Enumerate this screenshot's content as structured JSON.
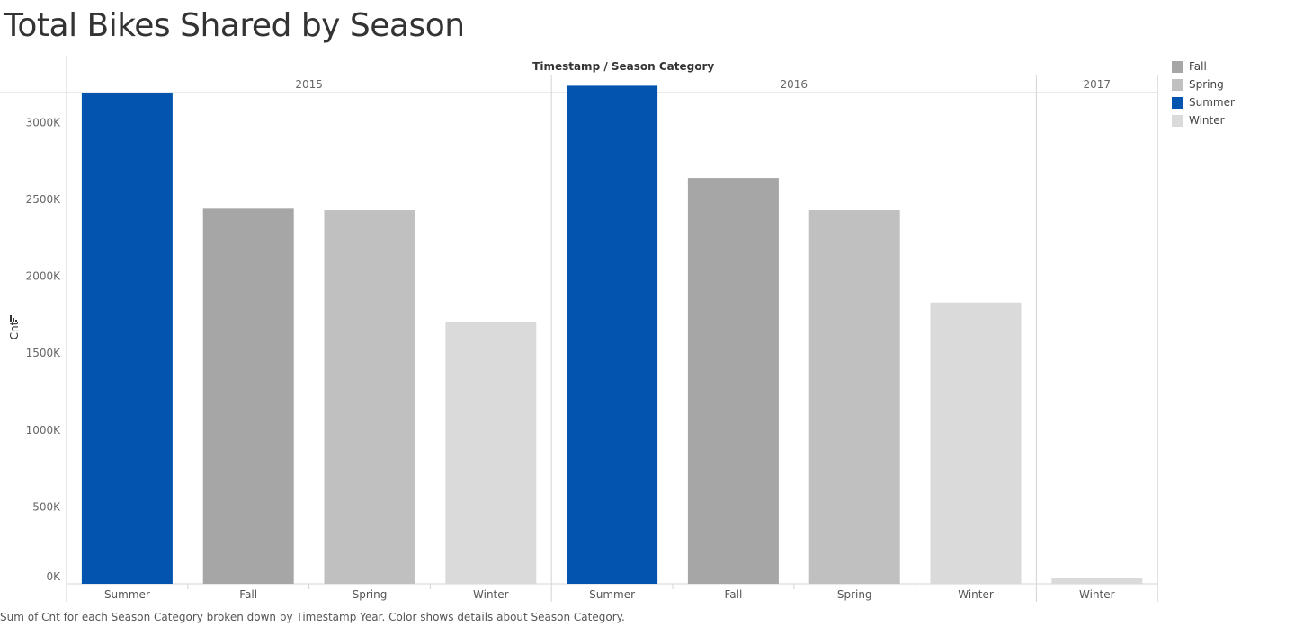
{
  "title": "Total Bikes Shared by Season",
  "caption": "Sum of Cnt for each Season Category broken down by Timestamp Year.  Color shows details about Season Category.",
  "colors": {
    "Summer": "#0254ae",
    "Fall": "#a6a6a6",
    "Spring": "#c0c0c0",
    "Winter": "#dadada"
  },
  "legend": [
    {
      "label": "Fall",
      "color": "#a6a6a6"
    },
    {
      "label": "Spring",
      "color": "#c0c0c0"
    },
    {
      "label": "Summer",
      "color": "#0254ae"
    },
    {
      "label": "Winter",
      "color": "#dadada"
    }
  ],
  "chart_data": {
    "type": "bar",
    "title": "Total Bikes Shared by Season",
    "header_label": "Timestamp / Season Category",
    "ylabel": "Cnt",
    "yunit_suffix": "K",
    "ylim": [
      0,
      3400
    ],
    "yticks": [
      0,
      500,
      1000,
      1500,
      2000,
      2500,
      3000
    ],
    "grid": false,
    "legend_position": "right",
    "panes": [
      {
        "year": "2015",
        "categories": [
          "Summer",
          "Fall",
          "Spring",
          "Winter"
        ],
        "values": [
          3190,
          2440,
          2430,
          1700
        ]
      },
      {
        "year": "2016",
        "categories": [
          "Summer",
          "Fall",
          "Spring",
          "Winter"
        ],
        "values": [
          3240,
          2640,
          2430,
          1830
        ]
      },
      {
        "year": "2017",
        "categories": [
          "Winter"
        ],
        "values": [
          40
        ]
      }
    ]
  }
}
